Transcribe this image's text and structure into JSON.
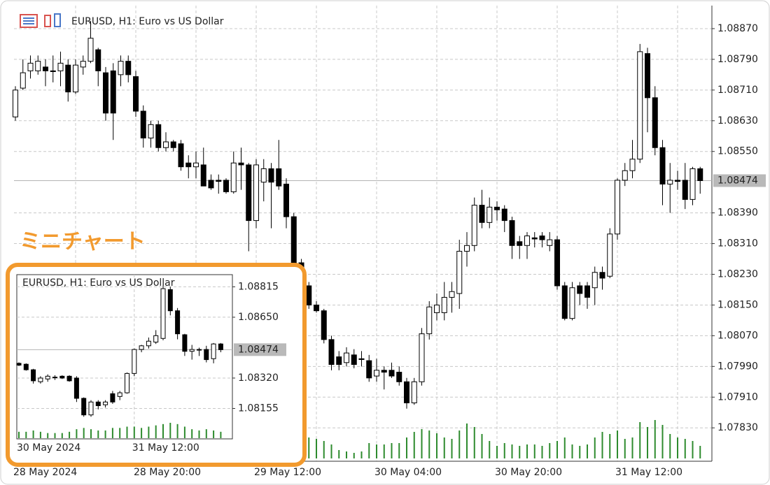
{
  "chart_data": [
    {
      "type": "candlestick",
      "title": "EURUSD, H1:  Euro vs US Dollar",
      "categories": [
        "28 May 2024",
        null,
        null,
        null,
        null,
        null,
        null,
        null,
        null,
        null,
        null,
        null,
        null,
        null,
        null,
        null,
        "28 May 20:00",
        null,
        null,
        null,
        null,
        null,
        null,
        null,
        null,
        null,
        null,
        null,
        null,
        null,
        null,
        null,
        "29 May 12:00",
        null,
        null,
        null,
        null,
        null,
        null,
        null,
        null,
        null,
        null,
        null,
        null,
        null,
        null,
        null,
        "30 May 04:00",
        null,
        null,
        null,
        null,
        null,
        null,
        null,
        null,
        null,
        null,
        null,
        null,
        null,
        null,
        null,
        "30 May 20:00",
        null,
        null,
        null,
        null,
        null,
        null,
        null,
        null,
        null,
        null,
        null,
        null,
        null,
        null,
        null,
        "31 May 12:00",
        null,
        null,
        null,
        null,
        null,
        null,
        null,
        null,
        null,
        null,
        null
      ],
      "open": [
        1.0864,
        1.08715,
        1.0876,
        1.0876,
        1.0877,
        1.0876,
        1.0876,
        1.08775,
        1.08705,
        1.0877,
        1.08785,
        1.08815,
        1.08755,
        1.0876,
        1.0875,
        1.08785,
        1.08745,
        1.08655,
        1.08585,
        1.0862,
        1.0856,
        1.08575,
        1.0857,
        1.0852,
        1.0851,
        1.08515,
        1.08475,
        1.08475,
        1.08475,
        1.08445,
        1.0852,
        1.08515,
        1.0837,
        1.0847,
        1.08505,
        1.08505,
        1.08465,
        1.0838,
        1.0826,
        1.082,
        1.0815,
        1.08135,
        1.0806,
        1.08015,
        1.08,
        1.0802,
        1.0801,
        1.08005,
        1.07965,
        1.0798,
        1.0798,
        1.07975,
        1.0795,
        1.07895,
        1.0795,
        1.08075,
        1.0813,
        1.0813,
        1.0817,
        1.0818,
        1.0829,
        1.08305,
        1.0841,
        1.08365,
        1.08405,
        1.084,
        1.0837,
        1.08315,
        1.08305,
        1.08325,
        1.0833,
        1.08305,
        1.0832,
        1.082,
        1.08115,
        1.082,
        1.082,
        1.08195,
        1.08235,
        1.08225,
        1.08335,
        1.08475,
        1.085,
        1.0853,
        1.08805,
        1.0869,
        1.0856,
        1.08465,
        1.08475,
        1.08475,
        1.08425,
        1.08505
      ],
      "high": [
        1.0872,
        1.0879,
        1.088,
        1.088,
        1.0879,
        1.088,
        1.0881,
        1.0879,
        1.0879,
        1.088,
        1.0889,
        1.0882,
        1.0877,
        1.0878,
        1.088,
        1.088,
        1.0876,
        1.0867,
        1.0863,
        1.0863,
        1.086,
        1.0858,
        1.0858,
        1.0854,
        1.0855,
        1.0856,
        1.0849,
        1.0849,
        1.0848,
        1.0855,
        1.0856,
        1.0852,
        1.0853,
        1.0853,
        1.0852,
        1.0858,
        1.0848,
        1.0839,
        1.0827,
        1.0821,
        1.0816,
        1.0814,
        1.0807,
        1.0803,
        1.0804,
        1.08035,
        1.0803,
        1.0802,
        1.0801,
        1.0799,
        1.08,
        1.0799,
        1.0796,
        1.0796,
        1.0809,
        1.0816,
        1.0818,
        1.0821,
        1.0821,
        1.0832,
        1.0834,
        1.0843,
        1.0845,
        1.0843,
        1.0842,
        1.0841,
        1.0838,
        1.0833,
        1.0834,
        1.0834,
        1.0834,
        1.0834,
        1.0833,
        1.0821,
        1.0821,
        1.0821,
        1.0821,
        1.0825,
        1.0825,
        1.0835,
        1.0848,
        1.0852,
        1.0858,
        1.0883,
        1.0882,
        1.0872,
        1.0858,
        1.0852,
        1.085,
        1.0852,
        1.0851,
        1.0851
      ],
      "low": [
        1.0863,
        1.0871,
        1.0874,
        1.0875,
        1.0872,
        1.0873,
        1.0872,
        1.0868,
        1.087,
        1.0875,
        1.0878,
        1.0872,
        1.0863,
        1.0858,
        1.0872,
        1.0873,
        1.0864,
        1.0856,
        1.0856,
        1.0855,
        1.0855,
        1.0855,
        1.085,
        1.0848,
        1.0848,
        1.0846,
        1.0845,
        1.0844,
        1.0844,
        1.0844,
        1.0845,
        1.0829,
        1.0835,
        1.0842,
        1.0835,
        1.0845,
        1.0835,
        1.0825,
        1.0818,
        1.0814,
        1.0813,
        1.0805,
        1.0798,
        1.0798,
        1.0799,
        1.07985,
        1.0799,
        1.0795,
        1.0795,
        1.0793,
        1.0796,
        1.0794,
        1.0788,
        1.0789,
        1.0794,
        1.0806,
        1.0811,
        1.0811,
        1.0813,
        1.0814,
        1.0825,
        1.0829,
        1.0835,
        1.0835,
        1.0837,
        1.0834,
        1.0827,
        1.0827,
        1.0827,
        1.083,
        1.083,
        1.0829,
        1.0819,
        1.0811,
        1.0811,
        1.0815,
        1.0814,
        1.0815,
        1.0819,
        1.0822,
        1.0832,
        1.0846,
        1.0848,
        1.0852,
        1.086,
        1.0854,
        1.0841,
        1.0839,
        1.0845,
        1.084,
        1.0841,
        1.0844
      ],
      "close": [
        1.0871,
        1.08755,
        1.0878,
        1.08785,
        1.0876,
        1.08758,
        1.0878,
        1.08705,
        1.08775,
        1.08785,
        1.08845,
        1.0876,
        1.0865,
        1.0865,
        1.08785,
        1.0875,
        1.08655,
        1.08585,
        1.0862,
        1.0856,
        1.08575,
        1.0856,
        1.0851,
        1.0851,
        1.0852,
        1.0846,
        1.08455,
        1.08472,
        1.08445,
        1.0852,
        1.08515,
        1.0837,
        1.08515,
        1.08505,
        1.0847,
        1.0846,
        1.0838,
        1.0826,
        1.082,
        1.0815,
        1.08135,
        1.0806,
        1.07995,
        1.07995,
        1.08025,
        1.07995,
        1.08008,
        1.0796,
        1.0798,
        1.07975,
        1.07965,
        1.0795,
        1.07895,
        1.0795,
        1.08075,
        1.08145,
        1.0815,
        1.0817,
        1.08185,
        1.0829,
        1.08305,
        1.0841,
        1.08365,
        1.08405,
        1.08398,
        1.0837,
        1.08305,
        1.08305,
        1.0833,
        1.08322,
        1.0832,
        1.0832,
        1.082,
        1.08115,
        1.08195,
        1.0818,
        1.0817,
        1.08235,
        1.0822,
        1.08335,
        1.08475,
        1.085,
        1.0853,
        1.0881,
        1.0869,
        1.0856,
        1.08465,
        1.08475,
        1.08472,
        1.08425,
        1.08505,
        1.08474
      ],
      "volume": [
        null,
        null,
        null,
        null,
        null,
        null,
        null,
        null,
        null,
        null,
        null,
        null,
        null,
        null,
        null,
        null,
        null,
        null,
        null,
        null,
        null,
        null,
        null,
        null,
        null,
        null,
        null,
        null,
        null,
        null,
        null,
        null,
        null,
        null,
        null,
        null,
        null,
        null,
        null,
        30,
        28,
        25,
        20,
        12,
        10,
        8,
        10,
        22,
        20,
        20,
        22,
        22,
        30,
        38,
        42,
        40,
        36,
        30,
        28,
        40,
        50,
        45,
        35,
        25,
        18,
        22,
        20,
        18,
        20,
        20,
        18,
        22,
        25,
        30,
        20,
        18,
        20,
        30,
        38,
        35,
        40,
        28,
        30,
        52,
        45,
        55,
        48,
        35,
        30,
        28,
        25,
        18
      ],
      "up_color": "#ffffff",
      "down_color": "#000000",
      "volume_color": "#2e8b2e",
      "grid": true,
      "ylim": [
        1.07743,
        1.0893
      ],
      "yticks": [
        {
          "value": 1.0887,
          "label": "1.08870"
        },
        {
          "value": 1.0879,
          "label": "1.08790"
        },
        {
          "value": 1.0871,
          "label": "1.08710"
        },
        {
          "value": 1.0863,
          "label": "1.08630"
        },
        {
          "value": 1.0855,
          "label": "1.08550"
        },
        {
          "value": 1.0839,
          "label": "1.08390"
        },
        {
          "value": 1.0831,
          "label": "1.08310"
        },
        {
          "value": 1.0823,
          "label": "1.08230"
        },
        {
          "value": 1.0815,
          "label": "1.08150"
        },
        {
          "value": 1.0807,
          "label": "1.08070"
        },
        {
          "value": 1.0799,
          "label": "1.07990"
        },
        {
          "value": 1.0791,
          "label": "1.07910"
        },
        {
          "value": 1.0783,
          "label": "1.07830"
        }
      ],
      "last_price": 1.08474
    },
    {
      "type": "candlestick",
      "title": "EURUSD, H1:  Euro vs US Dollar",
      "categories": [
        "30 May 2024",
        null,
        null,
        null,
        null,
        null,
        null,
        null,
        null,
        null,
        null,
        null,
        null,
        null,
        null,
        null,
        "31 May 12:00",
        null,
        null,
        null,
        null,
        null,
        null,
        null,
        null,
        null,
        null,
        null,
        null
      ],
      "open": [
        1.084,
        1.08395,
        1.08365,
        1.083,
        1.08315,
        1.08325,
        1.0833,
        1.0833,
        1.0832,
        1.0821,
        1.0812,
        1.0819,
        1.08175,
        1.08235,
        1.0822,
        1.0824,
        1.08345,
        1.08475,
        1.08495,
        1.08515,
        1.08535,
        1.088,
        1.08685,
        1.08555,
        1.08465,
        1.08475,
        1.08475,
        1.08425,
        1.08505
      ],
      "high": [
        1.08405,
        1.084,
        1.0837,
        1.0833,
        1.0834,
        1.08335,
        1.08335,
        1.08335,
        1.0833,
        1.08215,
        1.082,
        1.082,
        1.082,
        1.0825,
        1.0825,
        1.0835,
        1.0848,
        1.085,
        1.0854,
        1.0858,
        1.08825,
        1.08815,
        1.087,
        1.0856,
        1.085,
        1.08485,
        1.08495,
        1.0851,
        1.0851
      ],
      "low": [
        1.08385,
        1.0836,
        1.0829,
        1.0829,
        1.083,
        1.0831,
        1.08315,
        1.083,
        1.0819,
        1.0811,
        1.0811,
        1.0815,
        1.0816,
        1.0818,
        1.082,
        1.08235,
        1.0833,
        1.0846,
        1.0848,
        1.08505,
        1.08525,
        1.0866,
        1.0853,
        1.0844,
        1.0842,
        1.0844,
        1.08405,
        1.084,
        1.0846
      ],
      "close": [
        1.0839,
        1.08365,
        1.08305,
        1.0832,
        1.0833,
        1.08323,
        1.0832,
        1.08305,
        1.0821,
        1.0812,
        1.0819,
        1.0817,
        1.0819,
        1.0819,
        1.0824,
        1.08345,
        1.08475,
        1.08495,
        1.0852,
        1.0855,
        1.08805,
        1.08685,
        1.0856,
        1.08465,
        1.08475,
        1.08473,
        1.0842,
        1.08505,
        1.08474
      ],
      "volume": [
        10,
        10,
        12,
        10,
        8,
        8,
        8,
        10,
        14,
        16,
        14,
        12,
        12,
        16,
        16,
        18,
        18,
        16,
        18,
        20,
        22,
        24,
        22,
        18,
        14,
        12,
        14,
        12,
        10
      ],
      "up_color": "#ffffff",
      "down_color": "#000000",
      "volume_color": "#2e8b2e",
      "grid": true,
      "ylim": [
        1.0799,
        1.08881
      ],
      "yticks": [
        1.08815,
        {
          "value": 1.0865,
          "label": "1.08650"
        },
        {
          "value": 1.0832,
          "label": "1.08320"
        },
        1.08155
      ],
      "last_price": 1.08474
    }
  ],
  "annotation": "ミニチャート"
}
